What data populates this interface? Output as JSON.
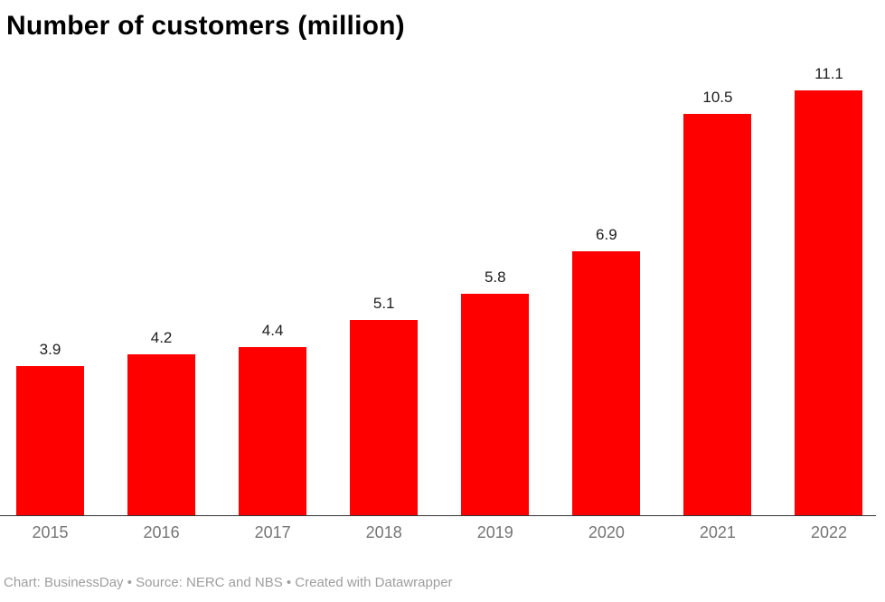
{
  "chart_data": {
    "type": "bar",
    "title": "Number of customers (million)",
    "categories": [
      "2015",
      "2016",
      "2017",
      "2018",
      "2019",
      "2020",
      "2021",
      "2022"
    ],
    "values": [
      3.9,
      4.2,
      4.4,
      5.1,
      5.8,
      6.9,
      10.5,
      11.1
    ],
    "value_labels": [
      "3.9",
      "4.2",
      "4.4",
      "5.1",
      "5.8",
      "6.9",
      "10.5",
      "11.1"
    ],
    "xlabel": "",
    "ylabel": "",
    "ylim": [
      0,
      12
    ],
    "grid": false,
    "legend_position": "none",
    "bar_color": "#ff0000",
    "axis_line_color": "#333333",
    "value_label_color": "#1d1d1d",
    "category_label_color": "#757575"
  },
  "footer": {
    "text": "Chart: BusinessDay  • Source: NERC and NBS • Created with Datawrapper",
    "color": "#9e9e9e"
  }
}
